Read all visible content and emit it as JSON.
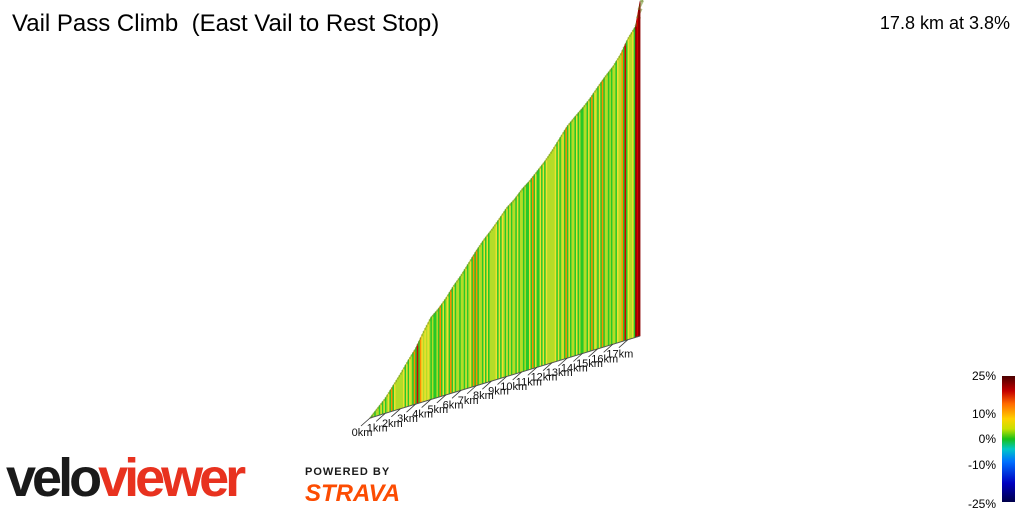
{
  "header": {
    "title": "Vail Pass Climb  (East Vail to Rest Stop)",
    "summary": "17.8 km at 3.8%"
  },
  "branding": {
    "logo_part1": "velo",
    "logo_part2": "viewer",
    "powered_by": "POWERED BY",
    "strava": "STRAVA"
  },
  "legend": {
    "labels": [
      "25%",
      "10%",
      "0%",
      "-10%",
      "-25%"
    ]
  },
  "colors": {
    "gradient_dark_red": "#8b0000",
    "gradient_red": "#d40000",
    "gradient_orange": "#ff8c00",
    "gradient_yellow": "#f0e030",
    "gradient_lime": "#b4dc28",
    "gradient_green": "#28c828",
    "strava_orange": "#fc4c02",
    "veloviewer_red": "#e8321f"
  },
  "chart_data": {
    "type": "area",
    "title": "Vail Pass Climb  (East Vail to Rest Stop)",
    "xlabel": "",
    "ylabel": "",
    "x_ticks": [
      "0km",
      "1km",
      "2km",
      "3km",
      "4km",
      "5km",
      "6km",
      "7km",
      "8km",
      "9km",
      "10km",
      "11km",
      "12km",
      "13km",
      "14km",
      "15km",
      "16km",
      "17km"
    ],
    "distance_km": [
      0,
      0.5,
      1,
      1.5,
      2,
      2.5,
      3,
      3.5,
      4,
      4.5,
      5,
      5.5,
      6,
      6.5,
      7,
      7.5,
      8,
      8.5,
      9,
      9.5,
      10,
      10.5,
      11,
      11.5,
      12,
      12.5,
      13,
      13.5,
      14,
      14.5,
      15,
      15.5,
      16,
      16.5,
      17,
      17.5,
      17.8
    ],
    "elevation_gain_m": [
      0,
      15,
      30,
      50,
      70,
      92,
      112,
      140,
      165,
      178,
      195,
      215,
      232,
      252,
      272,
      290,
      305,
      322,
      340,
      352,
      368,
      380,
      395,
      410,
      428,
      448,
      468,
      482,
      495,
      510,
      528,
      545,
      560,
      580,
      608,
      628,
      676
    ],
    "total_distance_km": 17.8,
    "average_gradient_pct": 3.8,
    "gradient_scale_pct": [
      25,
      10,
      0,
      -10,
      -25
    ]
  }
}
